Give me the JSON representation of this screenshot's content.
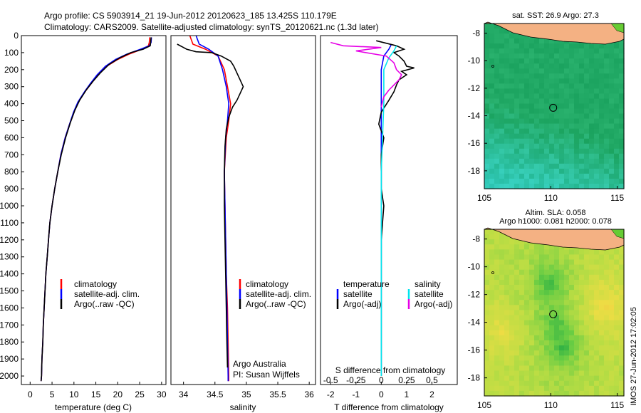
{
  "header": {
    "line1": "Argo profile: CS 5903914_21 19-Jun-2012 20120623_185 13.425S 110.179E",
    "line2": "Climatology: CARS2009. Satellite-adjusted climatology: synTS_20120621.nc (1.3d later)"
  },
  "side_label": "IMOS 27-Jun-2012 17:02:05",
  "chart_data": [
    {
      "type": "line",
      "id": "temperature",
      "xlabel": "temperature (deg C)",
      "ylabel": "",
      "xlim": [
        -2,
        31
      ],
      "ylim": [
        2050,
        0
      ],
      "xticks": [
        0,
        5,
        10,
        15,
        20,
        25,
        30
      ],
      "yticks": [
        0,
        100,
        200,
        300,
        400,
        500,
        600,
        700,
        800,
        900,
        1000,
        1100,
        1200,
        1300,
        1400,
        1500,
        1600,
        1700,
        1800,
        1900,
        2000
      ],
      "legend": {
        "placement": "lower-left",
        "entries": [
          "climatology",
          "satellite-adj. clim.",
          "Argo(..raw -QC)"
        ]
      },
      "series": [
        {
          "name": "climatology",
          "color": "#ff0000",
          "points": [
            [
              27.3,
              10
            ],
            [
              27.2,
              40
            ],
            [
              27.0,
              60
            ],
            [
              25.5,
              80
            ],
            [
              22.5,
              110
            ],
            [
              20.0,
              140
            ],
            [
              17.5,
              180
            ],
            [
              15.5,
              230
            ],
            [
              14.0,
              280
            ],
            [
              12.5,
              330
            ],
            [
              11.0,
              390
            ],
            [
              10.0,
              450
            ],
            [
              9.0,
              520
            ],
            [
              8.0,
              600
            ],
            [
              7.0,
              700
            ],
            [
              6.3,
              800
            ],
            [
              5.6,
              900
            ],
            [
              5.0,
              1000
            ],
            [
              4.5,
              1100
            ],
            [
              4.2,
              1200
            ],
            [
              3.9,
              1300
            ],
            [
              3.6,
              1400
            ],
            [
              3.4,
              1500
            ],
            [
              3.2,
              1600
            ],
            [
              3.0,
              1700
            ],
            [
              2.9,
              1800
            ],
            [
              2.7,
              1900
            ],
            [
              2.6,
              2000
            ],
            [
              2.5,
              2030
            ]
          ]
        },
        {
          "name": "satellite-adj. clim.",
          "color": "#0000ff",
          "points": [
            [
              27.7,
              10
            ],
            [
              27.6,
              40
            ],
            [
              27.2,
              60
            ],
            [
              25.2,
              80
            ],
            [
              22.0,
              110
            ],
            [
              19.5,
              140
            ],
            [
              17.2,
              180
            ],
            [
              15.3,
              230
            ],
            [
              13.8,
              280
            ],
            [
              12.4,
              330
            ],
            [
              10.9,
              390
            ],
            [
              9.9,
              450
            ],
            [
              9.0,
              520
            ],
            [
              8.0,
              600
            ],
            [
              7.0,
              700
            ],
            [
              6.3,
              800
            ],
            [
              5.6,
              900
            ],
            [
              5.0,
              1000
            ],
            [
              4.5,
              1100
            ],
            [
              4.2,
              1200
            ],
            [
              3.9,
              1300
            ],
            [
              3.6,
              1400
            ],
            [
              3.4,
              1500
            ],
            [
              3.2,
              1600
            ],
            [
              3.0,
              1700
            ],
            [
              2.9,
              1800
            ],
            [
              2.7,
              1900
            ],
            [
              2.6,
              2000
            ],
            [
              2.5,
              2030
            ]
          ]
        },
        {
          "name": "Argo(..raw -QC)",
          "color": "#000000",
          "points": [
            [
              27.6,
              10
            ],
            [
              27.5,
              40
            ],
            [
              27.4,
              60
            ],
            [
              25.8,
              80
            ],
            [
              23.0,
              100
            ],
            [
              20.5,
              130
            ],
            [
              18.0,
              170
            ],
            [
              16.0,
              220
            ],
            [
              14.3,
              270
            ],
            [
              12.8,
              320
            ],
            [
              11.3,
              380
            ],
            [
              10.2,
              440
            ],
            [
              9.2,
              510
            ],
            [
              8.1,
              600
            ],
            [
              7.1,
              700
            ],
            [
              6.3,
              800
            ],
            [
              5.6,
              900
            ],
            [
              5.0,
              1000
            ],
            [
              4.5,
              1100
            ],
            [
              4.2,
              1200
            ],
            [
              3.9,
              1300
            ],
            [
              3.6,
              1400
            ],
            [
              3.4,
              1500
            ],
            [
              3.2,
              1600
            ],
            [
              3.0,
              1700
            ],
            [
              2.9,
              1800
            ],
            [
              2.7,
              1900
            ],
            [
              2.6,
              2000
            ],
            [
              2.5,
              2030
            ]
          ]
        }
      ]
    },
    {
      "type": "line",
      "id": "salinity",
      "xlabel": "salinity",
      "ylabel": "",
      "xlim": [
        33.8,
        36.1
      ],
      "ylim": [
        2050,
        0
      ],
      "xticks": [
        34,
        34.5,
        35,
        35.5,
        36
      ],
      "legend": {
        "placement": "lower-right",
        "entries": [
          "climatology",
          "satellite-adj. clim.",
          "Argo(..raw -QC)"
        ]
      },
      "annotations": [
        "Argo Australia",
        "PI: Susan Wijffels"
      ],
      "series": [
        {
          "name": "climatology",
          "color": "#ff0000",
          "points": [
            [
              34.1,
              0
            ],
            [
              34.15,
              50
            ],
            [
              34.35,
              80
            ],
            [
              34.55,
              120
            ],
            [
              34.65,
              200
            ],
            [
              34.7,
              300
            ],
            [
              34.75,
              400
            ],
            [
              34.72,
              500
            ],
            [
              34.68,
              600
            ],
            [
              34.65,
              800
            ],
            [
              34.66,
              1000
            ],
            [
              34.67,
              1200
            ],
            [
              34.68,
              1400
            ],
            [
              34.7,
              1600
            ],
            [
              34.71,
              1800
            ],
            [
              34.72,
              2000
            ],
            [
              34.72,
              2030
            ]
          ]
        },
        {
          "name": "satellite-adj. clim.",
          "color": "#0000ff",
          "points": [
            [
              34.2,
              0
            ],
            [
              34.25,
              50
            ],
            [
              34.4,
              80
            ],
            [
              34.55,
              120
            ],
            [
              34.62,
              200
            ],
            [
              34.68,
              300
            ],
            [
              34.72,
              400
            ],
            [
              34.7,
              500
            ],
            [
              34.67,
              600
            ],
            [
              34.65,
              800
            ],
            [
              34.66,
              1000
            ],
            [
              34.67,
              1200
            ],
            [
              34.68,
              1400
            ],
            [
              34.69,
              1600
            ],
            [
              34.7,
              1800
            ],
            [
              34.71,
              2000
            ],
            [
              34.71,
              2030
            ]
          ]
        },
        {
          "name": "Argo(..raw -QC)",
          "color": "#000000",
          "points": [
            [
              33.9,
              50
            ],
            [
              34.05,
              80
            ],
            [
              34.2,
              95
            ],
            [
              34.45,
              100
            ],
            [
              34.6,
              120
            ],
            [
              34.75,
              150
            ],
            [
              34.8,
              180
            ],
            [
              34.85,
              220
            ],
            [
              34.9,
              260
            ],
            [
              34.95,
              300
            ],
            [
              34.9,
              340
            ],
            [
              34.85,
              380
            ],
            [
              34.78,
              420
            ],
            [
              34.72,
              480
            ],
            [
              34.68,
              550
            ],
            [
              34.66,
              650
            ],
            [
              34.65,
              800
            ],
            [
              34.65,
              1000
            ],
            [
              34.66,
              1200
            ],
            [
              34.67,
              1400
            ],
            [
              34.68,
              1600
            ],
            [
              34.69,
              1800
            ],
            [
              34.7,
              1950
            ]
          ]
        }
      ]
    },
    {
      "type": "line",
      "id": "differences",
      "xlabel": "T difference from climatology",
      "xlabel2": "S difference from climatology",
      "ylabel": "",
      "xlim": [
        -2.4,
        3.0
      ],
      "ylim": [
        2050,
        0
      ],
      "xticks": [
        -2,
        -1,
        0,
        1,
        2
      ],
      "xticks2": [
        -0.5,
        -0.25,
        0,
        0.25,
        0.5
      ],
      "legend": {
        "placement": "lower-center",
        "entries": [
          "temperature",
          "satellite",
          "Argo(-adj)",
          "salinity",
          "satellite",
          "Argo(-adj)"
        ]
      },
      "series": [
        {
          "name": "temperature satellite",
          "color": "#0000ff",
          "points": [
            [
              0.4,
              50
            ],
            [
              0.3,
              80
            ],
            [
              0.1,
              120
            ],
            [
              0.0,
              200
            ],
            [
              0.0,
              400
            ],
            [
              0.0,
              800
            ],
            [
              0.0,
              1200
            ],
            [
              0.0,
              1600
            ],
            [
              0.0,
              2000
            ]
          ]
        },
        {
          "name": "temperature Argo(-adj)",
          "color": "#000000",
          "points": [
            [
              -0.2,
              30
            ],
            [
              0.6,
              60
            ],
            [
              0.9,
              80
            ],
            [
              0.5,
              100
            ],
            [
              0.7,
              120
            ],
            [
              0.9,
              150
            ],
            [
              1.0,
              180
            ],
            [
              1.3,
              190
            ],
            [
              0.8,
              210
            ],
            [
              1.0,
              230
            ],
            [
              0.7,
              260
            ],
            [
              0.6,
              290
            ],
            [
              0.5,
              330
            ],
            [
              0.3,
              380
            ],
            [
              0.0,
              450
            ],
            [
              -0.1,
              520
            ],
            [
              0.1,
              600
            ],
            [
              0.0,
              700
            ],
            [
              0.0,
              900
            ],
            [
              0.1,
              1000
            ],
            [
              0.0,
              1200
            ],
            [
              0.0,
              1500
            ],
            [
              0.0,
              1800
            ],
            [
              0.0,
              2000
            ]
          ]
        },
        {
          "name": "salinity satellite",
          "color": "#00e5ee",
          "points": [
            [
              0.6,
              60
            ],
            [
              0.5,
              90
            ],
            [
              0.3,
              130
            ],
            [
              0.1,
              200
            ],
            [
              0.1,
              400
            ],
            [
              0.0,
              800
            ],
            [
              0.0,
              1200
            ],
            [
              0.0,
              1600
            ],
            [
              0.0,
              2000
            ]
          ]
        },
        {
          "name": "salinity Argo(-adj)",
          "color": "#e600e6",
          "points": [
            [
              -2.0,
              40
            ],
            [
              -1.5,
              60
            ],
            [
              0.0,
              70
            ],
            [
              -1.0,
              90
            ],
            [
              0.2,
              120
            ],
            [
              0.5,
              160
            ],
            [
              0.6,
              200
            ],
            [
              0.8,
              230
            ],
            [
              0.7,
              260
            ],
            [
              0.5,
              290
            ],
            [
              0.3,
              320
            ],
            [
              0.1,
              360
            ],
            [
              0.0,
              420
            ]
          ]
        }
      ]
    },
    {
      "type": "heatmap",
      "id": "sst-map",
      "title": "sat. SST: 26.9 Argo: 27.3",
      "xlim": [
        105,
        115.5
      ],
      "ylim": [
        -19.3,
        -7.3
      ],
      "xticks": [
        105,
        110,
        115
      ],
      "yticks": [
        -8,
        -10,
        -12,
        -14,
        -16,
        -18
      ],
      "marker": [
        110.18,
        -13.42
      ]
    },
    {
      "type": "heatmap",
      "id": "sla-map",
      "title": "Altim. SLA: 0.058",
      "subtitle": "Argo h1000: 0.081 h2000: 0.078",
      "xlim": [
        105,
        115.5
      ],
      "ylim": [
        -19.3,
        -7.3
      ],
      "xticks": [
        105,
        110,
        115
      ],
      "yticks": [
        -8,
        -10,
        -12,
        -14,
        -16,
        -18
      ],
      "marker": [
        110.18,
        -13.42
      ]
    }
  ]
}
